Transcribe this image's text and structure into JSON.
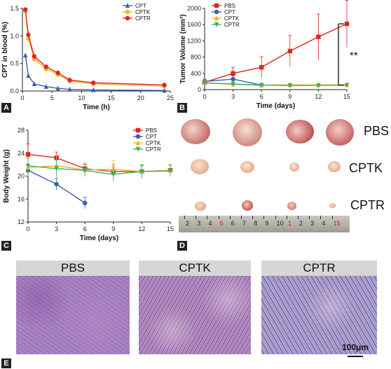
{
  "figure_labels": [
    "A",
    "B",
    "C",
    "D",
    "E"
  ],
  "chart_data": [
    {
      "type": "line",
      "panel": "A",
      "xlabel": "Time (h)",
      "ylabel": "CPT in blood (%)",
      "xlim": [
        0,
        25
      ],
      "ylim": [
        0,
        1.5
      ],
      "xticks": [
        0,
        5,
        10,
        15,
        20,
        25
      ],
      "yticks": [
        0.0,
        0.5,
        1.0,
        1.5
      ],
      "yticklabels": [
        "0.0",
        "0.5",
        "1.0",
        "1.5"
      ],
      "legend_position": "top-right",
      "series": [
        {
          "name": "CPT",
          "color": "#3a5fa8",
          "marker": "triangle",
          "x": [
            0.5,
            1,
            2,
            4,
            6,
            8,
            12,
            24
          ],
          "y": [
            0.65,
            0.28,
            0.13,
            0.08,
            0.05,
            0.03,
            0.02,
            0.01
          ]
        },
        {
          "name": "CPTK",
          "color": "#f2b81c",
          "marker": "circle",
          "x": [
            0.5,
            1,
            2,
            4,
            6,
            8,
            12,
            24
          ],
          "y": [
            1.45,
            0.95,
            0.58,
            0.4,
            0.3,
            0.18,
            0.13,
            0.09
          ]
        },
        {
          "name": "CPTR",
          "color": "#e02424",
          "marker": "circle",
          "x": [
            0.5,
            1,
            2,
            4,
            6,
            8,
            12,
            24
          ],
          "y": [
            1.48,
            1.02,
            0.63,
            0.44,
            0.33,
            0.2,
            0.15,
            0.11
          ]
        }
      ]
    },
    {
      "type": "line",
      "panel": "B",
      "xlabel": "Time (days)",
      "ylabel": "Tumor Volume (mm³)",
      "xlim": [
        0,
        15
      ],
      "ylim": [
        0,
        2000
      ],
      "xticks": [
        0,
        3,
        6,
        9,
        12,
        15
      ],
      "yticks": [
        0,
        400,
        800,
        1200,
        1600,
        2000
      ],
      "legend_position": "top-left",
      "annotation": "**",
      "series": [
        {
          "name": "PBS",
          "color": "#e02424",
          "marker": "square",
          "x": [
            0,
            3,
            6,
            9,
            12,
            15
          ],
          "y": [
            180,
            400,
            550,
            950,
            1300,
            1620
          ],
          "err": [
            40,
            150,
            260,
            380,
            560,
            580
          ]
        },
        {
          "name": "CPT",
          "color": "#3a5fa8",
          "marker": "circle",
          "x": [
            0,
            3,
            6
          ],
          "y": [
            200,
            260,
            110
          ],
          "err": [
            60,
            80,
            40
          ]
        },
        {
          "name": "CPTK",
          "color": "#f2b81c",
          "marker": "triangle",
          "x": [
            0,
            3,
            6,
            9,
            12,
            15
          ],
          "y": [
            170,
            130,
            110,
            120,
            115,
            120
          ],
          "err": [
            50,
            40,
            35,
            40,
            40,
            40
          ]
        },
        {
          "name": "CPTR",
          "color": "#36b36b",
          "marker": "triangle-down",
          "x": [
            0,
            3,
            6,
            9,
            12,
            15
          ],
          "y": [
            160,
            140,
            110,
            100,
            105,
            110
          ],
          "err": [
            50,
            40,
            35,
            35,
            35,
            35
          ]
        }
      ]
    },
    {
      "type": "line",
      "panel": "C",
      "xlabel": "Time (days)",
      "ylabel": "Body Weight (g)",
      "xlim": [
        0,
        15
      ],
      "ylim": [
        12,
        28
      ],
      "xticks": [
        0,
        3,
        6,
        9,
        12,
        15
      ],
      "yticks": [
        12,
        16,
        20,
        24,
        28
      ],
      "legend_position": "top-right",
      "series": [
        {
          "name": "PBS",
          "color": "#e02424",
          "marker": "square",
          "x": [
            0,
            3,
            6,
            9,
            12,
            15
          ],
          "y": [
            23.8,
            23.2,
            21.3,
            20.8,
            20.8,
            21.0
          ],
          "err": [
            1.8,
            1.0,
            0.8,
            1.2,
            1.0,
            1.0
          ]
        },
        {
          "name": "CPT",
          "color": "#3a5fa8",
          "marker": "circle",
          "x": [
            0,
            3,
            6
          ],
          "y": [
            21.0,
            18.6,
            15.3
          ],
          "err": [
            0.8,
            1.0,
            1.0
          ]
        },
        {
          "name": "CPTK",
          "color": "#f2b81c",
          "marker": "triangle",
          "x": [
            0,
            3,
            6,
            9,
            12,
            15
          ],
          "y": [
            21.5,
            21.8,
            21.1,
            21.2,
            20.8,
            21.0
          ],
          "err": [
            1.5,
            1.8,
            1.2,
            1.5,
            1.2,
            1.0
          ]
        },
        {
          "name": "CPTR",
          "color": "#36b36b",
          "marker": "triangle-down",
          "x": [
            0,
            3,
            6,
            9,
            12,
            15
          ],
          "y": [
            21.8,
            21.3,
            21.0,
            20.3,
            20.8,
            20.9
          ],
          "err": [
            1.5,
            1.5,
            1.0,
            1.3,
            1.2,
            1.0
          ]
        }
      ]
    }
  ],
  "panel_d": {
    "row_labels": [
      "PBS",
      "CPTK",
      "CPTR"
    ],
    "ruler_numbers": [
      "2",
      "3",
      "4",
      "5",
      "6",
      "7",
      "8",
      "9",
      "10",
      "1",
      "2",
      "3",
      "4",
      "15"
    ],
    "ruler_red": [
      3,
      9,
      13
    ]
  },
  "panel_e": {
    "titles": [
      "PBS",
      "CPTK",
      "CPTR"
    ],
    "scale_bar": "100μm"
  }
}
